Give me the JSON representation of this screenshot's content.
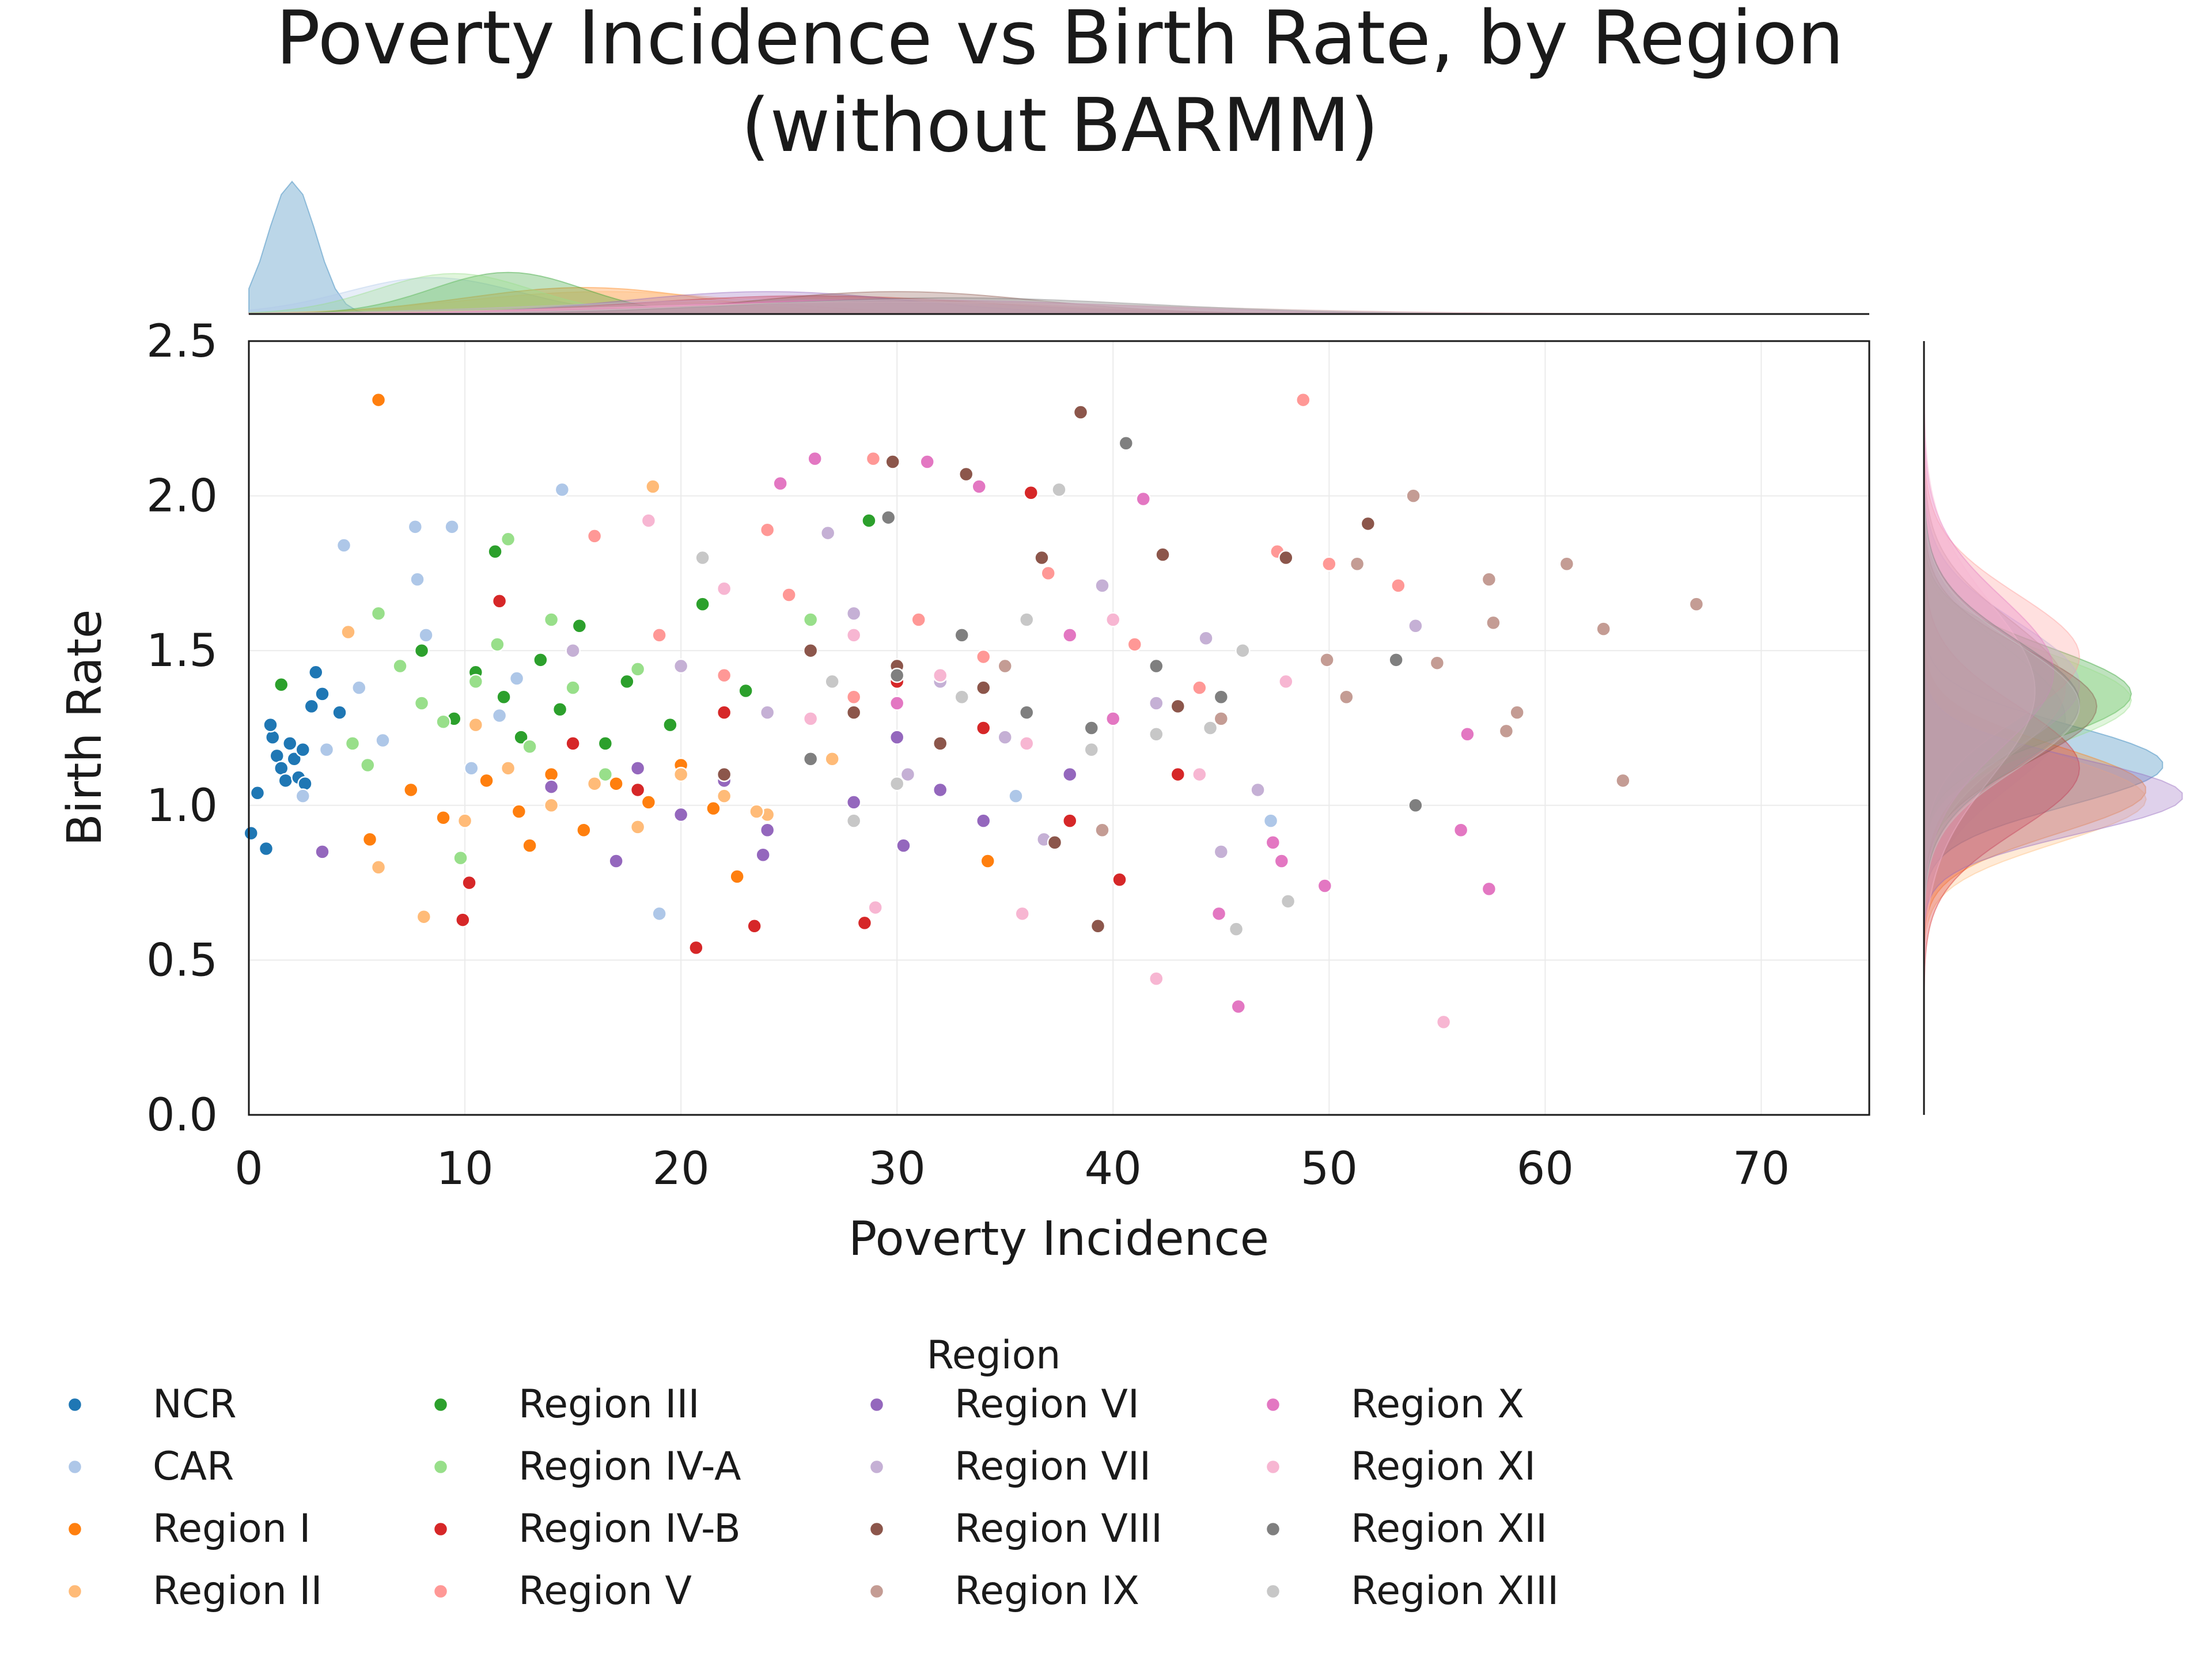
{
  "chart_data": {
    "type": "scatter",
    "title": [
      "Poverty Incidence vs Birth Rate, by Region",
      "(without BARMM)"
    ],
    "xlabel": "Poverty Incidence",
    "ylabel": "Birth Rate",
    "xlim": [
      0,
      75
    ],
    "ylim": [
      0,
      2.5
    ],
    "xticks": [
      0,
      10,
      20,
      30,
      40,
      50,
      60,
      70
    ],
    "yticks": [
      0.0,
      0.5,
      1.0,
      1.5,
      2.0,
      2.5
    ],
    "xtick_labels": [
      "0",
      "10",
      "20",
      "30",
      "40",
      "50",
      "60",
      "70"
    ],
    "ytick_labels": [
      "0.0",
      "0.5",
      "1.0",
      "1.5",
      "2.0",
      "2.5"
    ],
    "grid": true,
    "marginals": "kde",
    "legend_title": "Region",
    "legend_placement": "bottom",
    "series": [
      {
        "name": "NCR",
        "color": "#1f77b4",
        "x_mean": 2.0,
        "x_sd": 1.1,
        "y_mean": 1.13,
        "y_sd": 0.13,
        "points": [
          [
            0.1,
            0.91
          ],
          [
            0.4,
            1.04
          ],
          [
            0.8,
            0.86
          ],
          [
            1.1,
            1.22
          ],
          [
            1.3,
            1.16
          ],
          [
            1.5,
            1.12
          ],
          [
            1.7,
            1.08
          ],
          [
            1.9,
            1.2
          ],
          [
            2.1,
            1.15
          ],
          [
            2.3,
            1.09
          ],
          [
            2.6,
            1.07
          ],
          [
            2.9,
            1.32
          ],
          [
            3.1,
            1.43
          ],
          [
            3.4,
            1.36
          ],
          [
            4.2,
            1.3
          ],
          [
            1.0,
            1.26
          ],
          [
            2.5,
            1.18
          ]
        ]
      },
      {
        "name": "CAR",
        "color": "#aec7e8",
        "x_mean": 8.5,
        "x_sd": 4.0,
        "y_mean": 1.28,
        "y_sd": 0.22,
        "points": [
          [
            2.5,
            1.03
          ],
          [
            4.4,
            1.84
          ],
          [
            7.7,
            1.9
          ],
          [
            9.4,
            1.9
          ],
          [
            14.5,
            2.02
          ],
          [
            7.8,
            1.73
          ],
          [
            5.1,
            1.38
          ],
          [
            6.2,
            1.21
          ],
          [
            8.2,
            1.55
          ],
          [
            10.3,
            1.12
          ],
          [
            11.6,
            1.29
          ],
          [
            12.4,
            1.41
          ],
          [
            19.0,
            0.65
          ],
          [
            35.5,
            1.03
          ],
          [
            47.3,
            0.95
          ],
          [
            3.6,
            1.18
          ]
        ]
      },
      {
        "name": "Region I",
        "color": "#ff7f0e",
        "x_mean": 15.5,
        "x_sd": 5.5,
        "y_mean": 1.05,
        "y_sd": 0.14,
        "points": [
          [
            6.0,
            2.31
          ],
          [
            34.2,
            0.82
          ],
          [
            22.6,
            0.77
          ],
          [
            5.6,
            0.89
          ],
          [
            7.5,
            1.05
          ],
          [
            9.0,
            0.96
          ],
          [
            11.0,
            1.08
          ],
          [
            12.5,
            0.98
          ],
          [
            14.0,
            1.1
          ],
          [
            15.5,
            0.92
          ],
          [
            17.0,
            1.07
          ],
          [
            18.5,
            1.01
          ],
          [
            20.0,
            1.13
          ],
          [
            21.5,
            0.99
          ],
          [
            13.0,
            0.87
          ]
        ]
      },
      {
        "name": "Region II",
        "color": "#ffbb78",
        "x_mean": 16.5,
        "x_sd": 6.5,
        "y_mean": 1.02,
        "y_sd": 0.14,
        "points": [
          [
            18.7,
            2.03
          ],
          [
            8.1,
            0.64
          ],
          [
            6.0,
            0.8
          ],
          [
            4.6,
            1.56
          ],
          [
            10.0,
            0.95
          ],
          [
            12.0,
            1.12
          ],
          [
            14.0,
            1.0
          ],
          [
            16.0,
            1.07
          ],
          [
            18.0,
            0.93
          ],
          [
            20.0,
            1.1
          ],
          [
            22.0,
            1.03
          ],
          [
            24.0,
            0.97
          ],
          [
            27.0,
            1.15
          ],
          [
            10.5,
            1.26
          ],
          [
            23.5,
            0.98
          ]
        ]
      },
      {
        "name": "Region III",
        "color": "#2ca02c",
        "x_mean": 12.0,
        "x_sd": 3.5,
        "y_mean": 1.36,
        "y_sd": 0.15,
        "points": [
          [
            1.5,
            1.39
          ],
          [
            11.4,
            1.82
          ],
          [
            28.7,
            1.92
          ],
          [
            21.0,
            1.65
          ],
          [
            8.0,
            1.5
          ],
          [
            9.5,
            1.28
          ],
          [
            10.5,
            1.43
          ],
          [
            11.8,
            1.35
          ],
          [
            12.6,
            1.22
          ],
          [
            13.5,
            1.47
          ],
          [
            14.4,
            1.31
          ],
          [
            15.3,
            1.58
          ],
          [
            16.5,
            1.2
          ],
          [
            17.5,
            1.4
          ],
          [
            19.5,
            1.26
          ],
          [
            23.0,
            1.37
          ]
        ]
      },
      {
        "name": "Region IV-A",
        "color": "#98df8a",
        "x_mean": 9.5,
        "x_sd": 3.6,
        "y_mean": 1.34,
        "y_sd": 0.15,
        "points": [
          [
            4.8,
            1.2
          ],
          [
            6.0,
            1.62
          ],
          [
            7.0,
            1.45
          ],
          [
            8.0,
            1.33
          ],
          [
            9.0,
            1.27
          ],
          [
            9.8,
            0.83
          ],
          [
            10.5,
            1.4
          ],
          [
            11.5,
            1.52
          ],
          [
            12.0,
            1.86
          ],
          [
            13.0,
            1.19
          ],
          [
            14.0,
            1.6
          ],
          [
            15.0,
            1.38
          ],
          [
            16.5,
            1.1
          ],
          [
            18.0,
            1.44
          ],
          [
            26.0,
            1.6
          ],
          [
            5.5,
            1.13
          ]
        ]
      },
      {
        "name": "Region IV-B",
        "color": "#d62728",
        "x_mean": 26.0,
        "x_sd": 8.0,
        "y_mean": 1.12,
        "y_sd": 0.2,
        "points": [
          [
            9.9,
            0.63
          ],
          [
            10.2,
            0.75
          ],
          [
            11.6,
            1.66
          ],
          [
            20.7,
            0.54
          ],
          [
            23.4,
            0.61
          ],
          [
            28.5,
            0.62
          ],
          [
            36.2,
            2.01
          ],
          [
            40.3,
            0.76
          ],
          [
            43.0,
            1.1
          ],
          [
            15.0,
            1.2
          ],
          [
            18.0,
            1.05
          ],
          [
            22.0,
            1.3
          ],
          [
            26.0,
            1.15
          ],
          [
            30.0,
            1.4
          ],
          [
            34.0,
            1.25
          ],
          [
            38.0,
            0.95
          ]
        ]
      },
      {
        "name": "Region V",
        "color": "#ff9896",
        "x_mean": 27.0,
        "x_sd": 8.5,
        "y_mean": 1.48,
        "y_sd": 0.2,
        "points": [
          [
            48.8,
            2.31
          ],
          [
            28.9,
            2.12
          ],
          [
            16.0,
            1.87
          ],
          [
            47.6,
            1.82
          ],
          [
            50.0,
            1.78
          ],
          [
            53.2,
            1.71
          ],
          [
            19.0,
            1.55
          ],
          [
            22.0,
            1.42
          ],
          [
            25.0,
            1.68
          ],
          [
            28.0,
            1.35
          ],
          [
            31.0,
            1.6
          ],
          [
            34.0,
            1.48
          ],
          [
            37.0,
            1.75
          ],
          [
            41.0,
            1.52
          ],
          [
            44.0,
            1.38
          ],
          [
            24.0,
            1.89
          ]
        ]
      },
      {
        "name": "Region VI",
        "color": "#9467bd",
        "x_mean": 24.0,
        "x_sd": 6.5,
        "y_mean": 1.03,
        "y_sd": 0.12,
        "points": [
          [
            3.4,
            0.85
          ],
          [
            17.0,
            0.82
          ],
          [
            23.8,
            0.84
          ],
          [
            30.3,
            0.87
          ],
          [
            18.0,
            1.12
          ],
          [
            20.0,
            0.97
          ],
          [
            22.0,
            1.08
          ],
          [
            24.0,
            0.92
          ],
          [
            26.0,
            1.15
          ],
          [
            28.0,
            1.01
          ],
          [
            30.0,
            1.22
          ],
          [
            32.0,
            1.05
          ],
          [
            34.0,
            0.95
          ],
          [
            38.0,
            1.1
          ],
          [
            14.0,
            1.06
          ]
        ]
      },
      {
        "name": "Region VII",
        "color": "#c5b0d5",
        "x_mean": 24.5,
        "x_sd": 10.0,
        "y_mean": 1.39,
        "y_sd": 0.2,
        "points": [
          [
            26.8,
            1.88
          ],
          [
            39.5,
            1.71
          ],
          [
            36.8,
            0.89
          ],
          [
            45.0,
            0.85
          ],
          [
            46.7,
            1.05
          ],
          [
            54.0,
            1.58
          ],
          [
            44.3,
            1.54
          ],
          [
            20.0,
            1.45
          ],
          [
            24.0,
            1.3
          ],
          [
            28.0,
            1.62
          ],
          [
            32.0,
            1.4
          ],
          [
            35.0,
            1.22
          ],
          [
            42.0,
            1.33
          ],
          [
            15.0,
            1.5
          ],
          [
            30.5,
            1.1
          ]
        ]
      },
      {
        "name": "Region VIII",
        "color": "#8c564b",
        "x_mean": 30.0,
        "x_sd": 6.5,
        "y_mean": 1.32,
        "y_sd": 0.18,
        "points": [
          [
            38.5,
            2.27
          ],
          [
            33.2,
            2.07
          ],
          [
            29.8,
            2.11
          ],
          [
            39.3,
            0.61
          ],
          [
            37.3,
            0.88
          ],
          [
            36.7,
            1.8
          ],
          [
            42.3,
            1.81
          ],
          [
            48.0,
            1.8
          ],
          [
            51.8,
            1.91
          ],
          [
            26.0,
            1.5
          ],
          [
            28.0,
            1.3
          ],
          [
            30.0,
            1.45
          ],
          [
            32.0,
            1.2
          ],
          [
            34.0,
            1.38
          ],
          [
            22.0,
            1.1
          ],
          [
            43.0,
            1.32
          ]
        ]
      },
      {
        "name": "Region IX",
        "color": "#c49c94",
        "x_mean": 31.0,
        "x_sd": 12.0,
        "y_mean": 1.38,
        "y_sd": 0.22,
        "points": [
          [
            67.0,
            1.65
          ],
          [
            61.0,
            1.78
          ],
          [
            57.4,
            1.73
          ],
          [
            63.6,
            1.08
          ],
          [
            62.7,
            1.57
          ],
          [
            57.6,
            1.59
          ],
          [
            58.7,
            1.3
          ],
          [
            58.2,
            1.24
          ],
          [
            53.9,
            2.0
          ],
          [
            55.0,
            1.46
          ],
          [
            51.3,
            1.78
          ],
          [
            50.8,
            1.35
          ],
          [
            49.9,
            1.47
          ],
          [
            39.5,
            0.92
          ],
          [
            45.0,
            1.28
          ],
          [
            35.0,
            1.45
          ]
        ]
      },
      {
        "name": "Region X",
        "color": "#e377c2",
        "x_mean": 30.0,
        "x_sd": 10.0,
        "y_mean": 1.43,
        "y_sd": 0.24,
        "points": [
          [
            45.8,
            0.35
          ],
          [
            57.4,
            0.73
          ],
          [
            56.4,
            1.23
          ],
          [
            56.1,
            0.92
          ],
          [
            49.8,
            0.74
          ],
          [
            44.9,
            0.65
          ],
          [
            47.8,
            0.82
          ],
          [
            47.4,
            0.88
          ],
          [
            41.4,
            1.99
          ],
          [
            33.8,
            2.03
          ],
          [
            31.4,
            2.11
          ],
          [
            26.2,
            2.12
          ],
          [
            24.6,
            2.04
          ],
          [
            40.0,
            1.28
          ],
          [
            38.0,
            1.55
          ],
          [
            30.0,
            1.33
          ]
        ]
      },
      {
        "name": "Region XI",
        "color": "#f7b6d2",
        "x_mean": 30.0,
        "x_sd": 12.0,
        "y_mean": 1.37,
        "y_sd": 0.28,
        "points": [
          [
            55.3,
            0.3
          ],
          [
            42.0,
            0.44
          ],
          [
            35.8,
            0.65
          ],
          [
            29.0,
            0.67
          ],
          [
            18.5,
            1.92
          ],
          [
            28.0,
            1.55
          ],
          [
            32.0,
            1.42
          ],
          [
            36.0,
            1.2
          ],
          [
            22.0,
            1.7
          ],
          [
            26.0,
            1.28
          ],
          [
            40.0,
            1.6
          ],
          [
            44.0,
            1.1
          ],
          [
            48.0,
            1.4
          ]
        ]
      },
      {
        "name": "Region XII",
        "color": "#7f7f7f",
        "x_mean": 32.5,
        "x_sd": 9.0,
        "y_mean": 1.33,
        "y_sd": 0.2,
        "points": [
          [
            40.6,
            2.17
          ],
          [
            53.1,
            1.47
          ],
          [
            54.0,
            1.0
          ],
          [
            29.6,
            1.93
          ],
          [
            30.0,
            1.42
          ],
          [
            33.0,
            1.55
          ],
          [
            36.0,
            1.3
          ],
          [
            39.0,
            1.25
          ],
          [
            42.0,
            1.45
          ],
          [
            45.0,
            1.35
          ],
          [
            26.0,
            1.15
          ]
        ]
      },
      {
        "name": "Region XIII",
        "color": "#c7c7c7",
        "x_mean": 32.0,
        "x_sd": 10.0,
        "y_mean": 1.32,
        "y_sd": 0.2,
        "points": [
          [
            37.5,
            2.02
          ],
          [
            45.7,
            0.6
          ],
          [
            48.1,
            0.69
          ],
          [
            42.0,
            1.23
          ],
          [
            44.5,
            1.25
          ],
          [
            46.0,
            1.5
          ],
          [
            27.0,
            1.4
          ],
          [
            30.0,
            1.07
          ],
          [
            33.0,
            1.35
          ],
          [
            36.0,
            1.6
          ],
          [
            39.0,
            1.18
          ],
          [
            28.0,
            0.95
          ],
          [
            21.0,
            1.8
          ]
        ]
      }
    ]
  }
}
